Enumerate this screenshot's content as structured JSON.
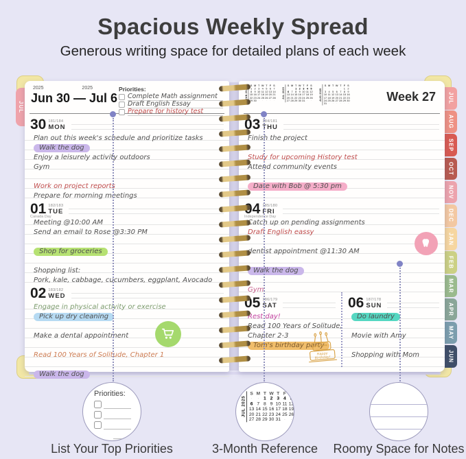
{
  "header": {
    "title": "Spacious Weekly Spread",
    "subtitle": "Generous writing space for detailed plans of each week"
  },
  "planner": {
    "dow": [
      "S",
      "M",
      "T",
      "W",
      "T",
      "F",
      "S"
    ],
    "left_page": {
      "tab": "JUL",
      "year_left": "2025",
      "year_right": "2025",
      "range": "Jun 30 — Jul 6",
      "priorities": {
        "label": "Priorities:",
        "items": [
          {
            "text": "Complete Math assignment",
            "color": "dark"
          },
          {
            "text": "Draft English Essay",
            "color": "dark"
          },
          {
            "text": "Prepare for history test",
            "color": "red"
          }
        ]
      },
      "days": [
        {
          "num": "30",
          "doy": "181/184",
          "abbr": "MON",
          "entries": [
            {
              "t": "Plan out this week's schedule and prioritize tasks",
              "c": "dark"
            },
            {
              "t": "Walk the dog",
              "c": "dark",
              "h": "purple"
            },
            {
              "t": "Enjoy a leisurely activity outdoors",
              "c": "dark"
            },
            {
              "t": "Gym",
              "c": "dark"
            },
            {
              "t": ""
            },
            {
              "t": "Work on project reports",
              "c": "red"
            },
            {
              "t": "Prepare for morning meetings",
              "c": "dark"
            }
          ]
        },
        {
          "num": "01",
          "doy": "182/183",
          "abbr": "TUE",
          "note": "Canada Day",
          "entries": [
            {
              "t": "Meeting @10:00 AM",
              "c": "dark"
            },
            {
              "t": "Send an email to Rose @3:30 PM",
              "c": "dark"
            },
            {
              "t": ""
            },
            {
              "t": "Shop for groceries",
              "c": "dark",
              "h": "green"
            },
            {
              "t": ""
            },
            {
              "t": "Shopping list:",
              "c": "dark"
            },
            {
              "t": "Pork, kale, cabbage, cucumbers, eggplant, Avocado",
              "c": "dark"
            }
          ]
        },
        {
          "num": "02",
          "doy": "183/182",
          "abbr": "WED",
          "entries": [
            {
              "t": "Engage in physical activity or exercise",
              "c": "green"
            },
            {
              "t": "Pick up dry cleaning",
              "c": "dark",
              "h": "blue"
            },
            {
              "t": ""
            },
            {
              "t": "Make a dental appointment",
              "c": "dark"
            },
            {
              "t": ""
            },
            {
              "t": "Read 100 Years of Solitude, Chapter 1",
              "c": "orange"
            },
            {
              "t": ""
            },
            {
              "t": "Walk the dog",
              "c": "dark",
              "h": "purple"
            }
          ]
        }
      ]
    },
    "right_page": {
      "week_label": "Week 27",
      "mini_calendars": [
        {
          "month": "JUN 2025",
          "weeks": [
            [
              "1",
              "2",
              "3",
              "4",
              "5",
              "6",
              "7"
            ],
            [
              "8",
              "9",
              "10",
              "11",
              "12",
              "13",
              "14"
            ],
            [
              "15",
              "16",
              "17",
              "18",
              "19",
              "20",
              "21"
            ],
            [
              "22",
              "23",
              "24",
              "25",
              "26",
              "27",
              "28"
            ],
            [
              "29",
              "30",
              "-",
              "-",
              "-",
              "-",
              "-"
            ]
          ]
        },
        {
          "month": "JUL 2025",
          "bold": true,
          "weeks": [
            [
              "-",
              "-",
              "1",
              "2",
              "3",
              "4",
              "5"
            ],
            [
              "6",
              "7",
              "8",
              "9",
              "10",
              "11",
              "12"
            ],
            [
              "13",
              "14",
              "15",
              "16",
              "17",
              "18",
              "19"
            ],
            [
              "20",
              "21",
              "22",
              "23",
              "24",
              "25",
              "26"
            ],
            [
              "27",
              "28",
              "29",
              "30",
              "31",
              "-",
              "-"
            ]
          ]
        },
        {
          "month": "AUG 2025",
          "weeks": [
            [
              "-",
              "-",
              "-",
              "-",
              "-",
              "1",
              "2"
            ],
            [
              "3",
              "4",
              "5",
              "6",
              "7",
              "8",
              "9"
            ],
            [
              "10",
              "11",
              "12",
              "13",
              "14",
              "15",
              "16"
            ],
            [
              "17",
              "18",
              "19",
              "20",
              "21",
              "22",
              "23"
            ],
            [
              "24",
              "25",
              "26",
              "27",
              "28",
              "29",
              "30"
            ],
            [
              "31",
              "-",
              "-",
              "-",
              "-",
              "-",
              "-"
            ]
          ]
        }
      ],
      "days": [
        {
          "num": "03",
          "doy": "184/181",
          "abbr": "THU",
          "entries": [
            {
              "t": "Finish the project",
              "c": "dark"
            },
            {
              "t": ""
            },
            {
              "t": "Study for upcoming History test",
              "c": "red"
            },
            {
              "t": "Attend community events",
              "c": "dark"
            },
            {
              "t": ""
            },
            {
              "t": "Date with Bob @ 5:30 pm",
              "c": "dark",
              "h": "pink"
            },
            {
              "t": ""
            }
          ]
        },
        {
          "num": "04",
          "doy": "185/180",
          "abbr": "FRI",
          "note": "Independence Day",
          "entries": [
            {
              "t": "Catch up on pending assignments",
              "c": "dark"
            },
            {
              "t": "Draft English eassy",
              "c": "red"
            },
            {
              "t": ""
            },
            {
              "t": "dentist appointment @11:30 AM",
              "c": "dark"
            },
            {
              "t": ""
            },
            {
              "t": "Walk the dog",
              "c": "dark",
              "h": "purple"
            },
            {
              "t": ""
            },
            {
              "t": "Gym",
              "c": "pink"
            }
          ]
        }
      ],
      "weekend": [
        {
          "num": "05",
          "doy": "186/179",
          "abbr": "SAT",
          "entries": [
            {
              "t": "Rest day!",
              "c": "magenta"
            },
            {
              "t": "Read 100 Years of Solitude,",
              "c": "dark"
            },
            {
              "t": "Chapter 2-3",
              "c": "dark"
            },
            {
              "t": "Tom's birthday party",
              "c": "brown",
              "h": "orange"
            },
            {
              "t": ""
            },
            {
              "t": ""
            }
          ]
        },
        {
          "num": "06",
          "doy": "187/178",
          "abbr": "SUN",
          "entries": [
            {
              "t": "Do laundry",
              "c": "dark",
              "h": "teal"
            },
            {
              "t": ""
            },
            {
              "t": "Movie with Amy",
              "c": "dark"
            },
            {
              "t": ""
            },
            {
              "t": "Shopping with Mom",
              "c": "dark"
            },
            {
              "t": ""
            }
          ]
        }
      ]
    },
    "tabs": [
      {
        "label": "JUL",
        "color": "#f2a1a1"
      },
      {
        "label": "AUG",
        "color": "#ee9184"
      },
      {
        "label": "SEP",
        "color": "#d85a52"
      },
      {
        "label": "OCT",
        "color": "#b75a50"
      },
      {
        "label": "NOV",
        "color": "#eca3ad"
      },
      {
        "label": "DEC",
        "color": "#f3c8a2"
      },
      {
        "label": "JAN",
        "color": "#f6d6a0"
      },
      {
        "label": "FEB",
        "color": "#cbd084"
      },
      {
        "label": "MAR",
        "color": "#9aba8d"
      },
      {
        "label": "APR",
        "color": "#8aa698"
      },
      {
        "label": "MAY",
        "color": "#7b9dad"
      },
      {
        "label": "JUN",
        "color": "#3f4e68"
      }
    ]
  },
  "icons": {
    "cart": {
      "name": "shopping-cart",
      "color": "#a5d96d"
    },
    "tooth": {
      "name": "tooth",
      "color": "#f2a2b6"
    },
    "cake": {
      "name": "birthday-cake",
      "color": "#d9a44a"
    }
  },
  "callouts": [
    {
      "caption": "List Your Top Priorities",
      "label": "Priorities:"
    },
    {
      "caption": "3-Month Reference",
      "calendar": {
        "month": "JUL 2025",
        "bold": true,
        "weeks": [
          [
            "-",
            "-",
            "1",
            "2",
            "3",
            "4",
            "5"
          ],
          [
            "6",
            "7",
            "8",
            "9",
            "10",
            "11",
            "12"
          ],
          [
            "13",
            "14",
            "15",
            "16",
            "17",
            "18",
            "19"
          ],
          [
            "20",
            "21",
            "22",
            "23",
            "24",
            "25",
            "26"
          ],
          [
            "27",
            "28",
            "29",
            "30",
            "31",
            "-",
            "-"
          ]
        ]
      }
    },
    {
      "caption": "Roomy Space for Notes"
    }
  ]
}
